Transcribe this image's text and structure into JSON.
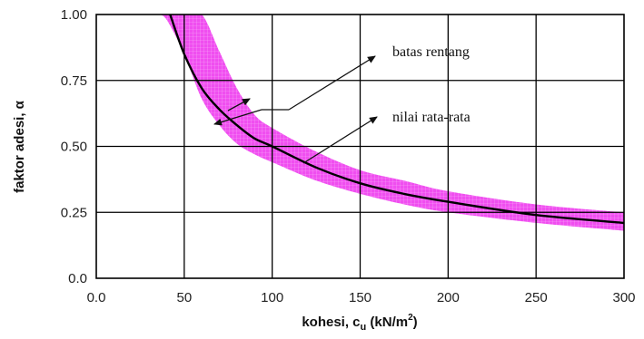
{
  "chart_data": {
    "type": "line",
    "title": "",
    "xlabel": {
      "main": "kohesi, c",
      "sub": "u",
      "unit": " (kN/m",
      "sup": "2",
      "close": ")"
    },
    "ylabel": "faktor adesi, α",
    "xlim": [
      0,
      300
    ],
    "ylim": [
      0,
      1
    ],
    "x_ticks": [
      0,
      50,
      100,
      150,
      200,
      250,
      300
    ],
    "x_tick_labels": [
      "0.0",
      "50",
      "100",
      "150",
      "200",
      "250",
      "300"
    ],
    "y_ticks": [
      0,
      0.25,
      0.5,
      0.75,
      1.0
    ],
    "y_tick_labels": [
      "0.0",
      "0.25",
      "0.50",
      "0.75",
      "1.00"
    ],
    "grid": true,
    "series": [
      {
        "name": "nilai rata-rata",
        "x": [
          42,
          50,
          60,
          70,
          80,
          90,
          100,
          125,
          150,
          175,
          200,
          250,
          300
        ],
        "y": [
          1.0,
          0.85,
          0.72,
          0.64,
          0.58,
          0.53,
          0.5,
          0.42,
          0.36,
          0.32,
          0.29,
          0.24,
          0.21
        ]
      }
    ],
    "band": {
      "name": "batas rentang",
      "color": "#f04ef0",
      "x": [
        35,
        40,
        50,
        60,
        70,
        80,
        90,
        100,
        125,
        150,
        175,
        200,
        250,
        300
      ],
      "upper": [
        1.0,
        1.0,
        1.0,
        1.0,
        0.86,
        0.72,
        0.62,
        0.57,
        0.48,
        0.41,
        0.37,
        0.33,
        0.28,
        0.25
      ],
      "lower": [
        1.0,
        0.98,
        0.85,
        0.68,
        0.58,
        0.51,
        0.47,
        0.44,
        0.37,
        0.32,
        0.28,
        0.25,
        0.21,
        0.18
      ]
    },
    "annotations": [
      {
        "id": "range",
        "text": "batas rentang"
      },
      {
        "id": "mean",
        "text": "nilai rata-rata"
      }
    ]
  }
}
